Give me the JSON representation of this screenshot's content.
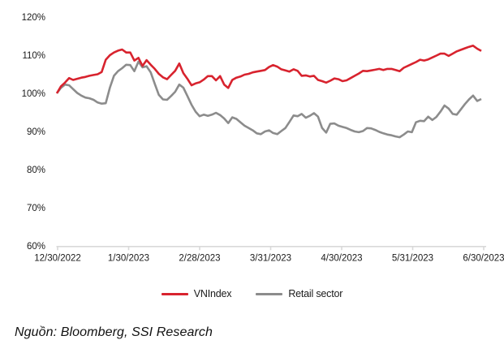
{
  "chart_data": {
    "type": "line",
    "title": "",
    "xlabel": "",
    "ylabel": "",
    "ylim": [
      60,
      120
    ],
    "grid": false,
    "legend_position": "bottom-center",
    "y_ticks": [
      {
        "label": "120%",
        "value": 120
      },
      {
        "label": "110%",
        "value": 110
      },
      {
        "label": "100%",
        "value": 100
      },
      {
        "label": "90%",
        "value": 90
      },
      {
        "label": "80%",
        "value": 80
      },
      {
        "label": "70%",
        "value": 70
      },
      {
        "label": "60%",
        "value": 60
      }
    ],
    "x_tick_labels": [
      "12/30/2022",
      "1/30/2023",
      "2/28/2023",
      "3/31/2023",
      "4/30/2023",
      "5/31/2023",
      "6/30/2023"
    ],
    "x_range": {
      "start": "12/30/2022",
      "end": "6/30/2023"
    },
    "series": [
      {
        "name": "VNIndex",
        "color": "#d8232e",
        "unit": "%",
        "values": [
          100.0,
          101.8,
          102.8,
          104.0,
          103.5,
          103.8,
          104.1,
          104.3,
          104.6,
          104.8,
          105.0,
          105.6,
          108.8,
          110.0,
          110.7,
          111.2,
          111.5,
          110.7,
          110.7,
          108.6,
          109.3,
          107.2,
          108.7,
          107.5,
          106.4,
          105.1,
          104.2,
          103.7,
          104.8,
          105.9,
          107.8,
          105.3,
          103.8,
          102.1,
          102.6,
          102.9,
          103.6,
          104.5,
          104.5,
          103.4,
          104.5,
          102.3,
          101.4,
          103.5,
          104.1,
          104.4,
          104.9,
          105.1,
          105.5,
          105.7,
          105.9,
          106.1,
          106.9,
          107.4,
          107.0,
          106.3,
          106.0,
          105.7,
          106.3,
          105.9,
          104.6,
          104.7,
          104.4,
          104.6,
          103.5,
          103.2,
          102.8,
          103.3,
          103.9,
          103.7,
          103.2,
          103.4,
          104.0,
          104.6,
          105.2,
          105.9,
          105.8,
          106.0,
          106.2,
          106.4,
          106.1,
          106.4,
          106.4,
          106.1,
          105.8,
          106.7,
          107.2,
          107.7,
          108.2,
          108.8,
          108.6,
          108.9,
          109.4,
          109.9,
          110.4,
          110.4,
          109.8,
          110.4,
          111.0,
          111.4,
          111.8,
          112.2,
          112.5,
          111.7,
          111.1
        ]
      },
      {
        "name": "Retail sector",
        "color": "#8c8c8c",
        "unit": "%",
        "values": [
          100.0,
          101.4,
          102.3,
          102.1,
          101.1,
          100.1,
          99.4,
          98.9,
          98.7,
          98.3,
          97.6,
          97.3,
          97.4,
          101.5,
          104.6,
          105.8,
          106.6,
          107.5,
          107.4,
          105.8,
          108.3,
          106.8,
          107.1,
          105.5,
          102.5,
          99.6,
          98.4,
          98.3,
          99.3,
          100.4,
          102.3,
          101.5,
          99.3,
          97.0,
          95.2,
          94.0,
          94.4,
          94.1,
          94.4,
          94.9,
          94.3,
          93.4,
          92.2,
          93.7,
          93.3,
          92.4,
          91.5,
          90.9,
          90.3,
          89.5,
          89.3,
          90.0,
          90.3,
          89.6,
          89.3,
          90.1,
          90.9,
          92.5,
          94.2,
          94.0,
          94.6,
          93.6,
          94.1,
          94.8,
          93.9,
          90.9,
          89.7,
          92.0,
          92.1,
          91.5,
          91.2,
          90.9,
          90.4,
          90.0,
          89.8,
          90.1,
          90.9,
          90.8,
          90.4,
          89.9,
          89.5,
          89.2,
          89.0,
          88.7,
          88.5,
          89.2,
          90.0,
          89.8,
          92.4,
          92.8,
          92.7,
          93.9,
          93.0,
          93.8,
          95.2,
          96.8,
          96.0,
          94.6,
          94.4,
          95.8,
          97.2,
          98.4,
          99.4,
          98.0,
          98.5
        ]
      }
    ]
  },
  "legend": {
    "items": [
      {
        "label": "VNIndex",
        "color": "#d8232e"
      },
      {
        "label": "Retail sector",
        "color": "#8c8c8c"
      }
    ]
  },
  "source_note": "Nguồn: Bloomberg, SSI Research",
  "colors": {
    "axis_line": "#d9d9d9",
    "tick_text": "#1a1a1a",
    "vnindex": "#d8232e",
    "retail": "#8c8c8c"
  }
}
